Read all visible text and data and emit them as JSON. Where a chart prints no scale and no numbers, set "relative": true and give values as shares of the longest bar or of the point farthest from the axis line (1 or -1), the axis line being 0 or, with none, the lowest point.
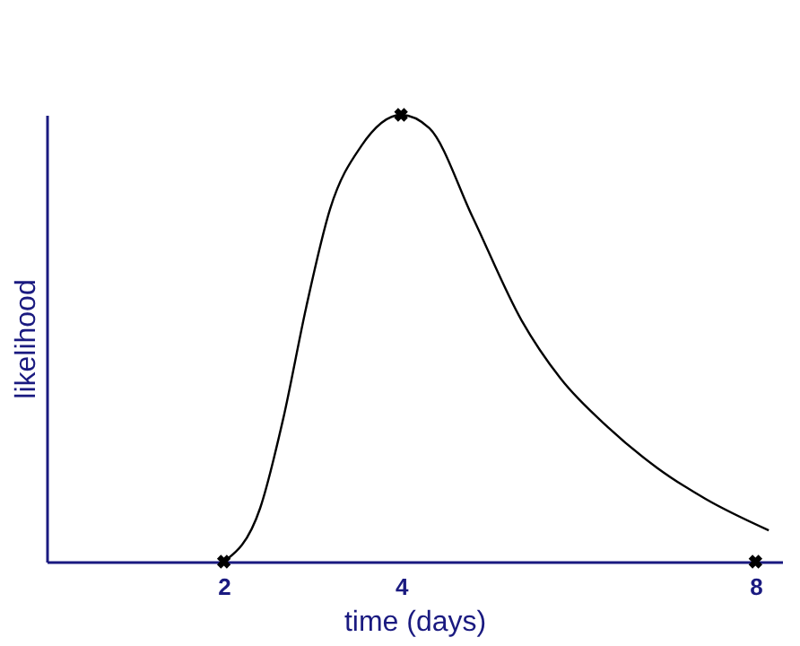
{
  "chart_data": {
    "type": "line",
    "relative": true,
    "xlabel": "time (days)",
    "ylabel": "likelihood",
    "xlim": [
      0,
      8.3
    ],
    "xticks": [
      2,
      4,
      8
    ],
    "grid": false,
    "tick_labels": "x",
    "series": [
      {
        "color": "#000000",
        "marker": "none",
        "x": [
          2,
          2.41,
          2.67,
          2.93,
          3.2,
          3.55,
          4,
          4.32,
          4.81,
          5.36,
          5.8,
          6.34,
          6.89,
          7.44,
          8.15
        ],
        "values": [
          0,
          0.12,
          0.32,
          0.57,
          0.79,
          0.93,
          1,
          0.97,
          0.77,
          0.54,
          0.41,
          0.3,
          0.21,
          0.14,
          0.07
        ]
      },
      {
        "type": "scatter",
        "color": "#000000",
        "marker": "cross",
        "x": [
          2,
          4,
          8
        ],
        "values": [
          0,
          1,
          0
        ]
      }
    ]
  }
}
